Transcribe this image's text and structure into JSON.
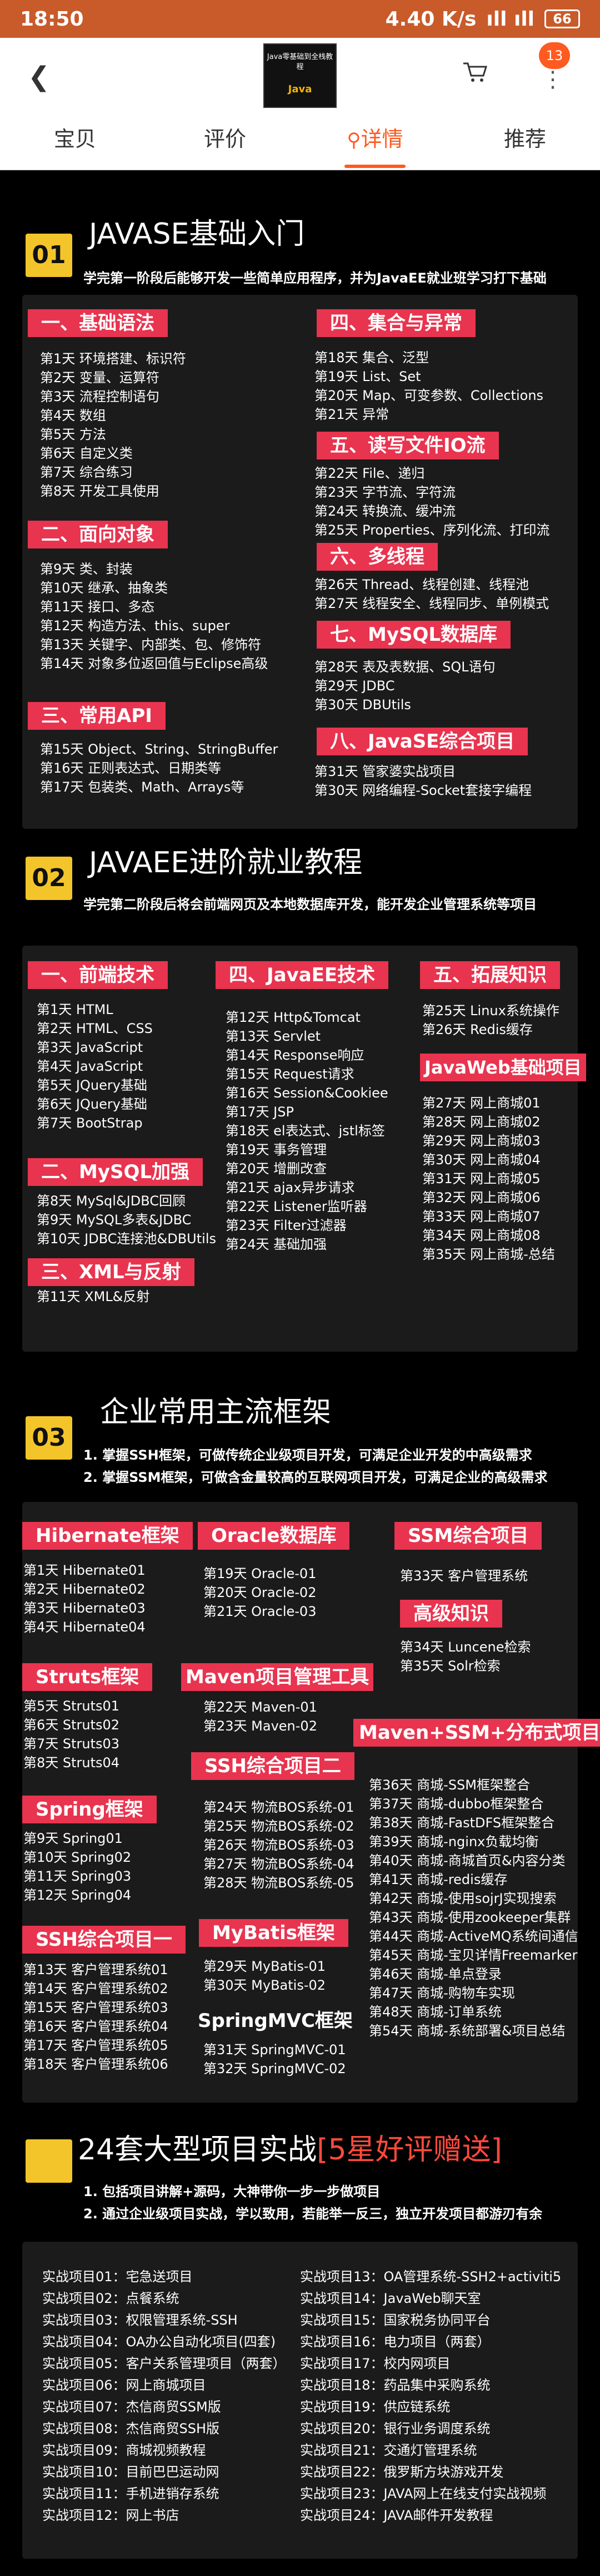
{
  "statusbar": {
    "time": "18:50",
    "speed": "4.40 K/s",
    "signal": "ıll ıll",
    "battery": "66"
  },
  "header": {
    "back_icon": "chevron-left-icon",
    "logo_text": "Java零基础到全栈教程",
    "logo_brand": "Java",
    "cart_icon": "cart-icon",
    "more_icon": "more-icon",
    "badge": "13"
  },
  "tabs": [
    {
      "label": "宝贝"
    },
    {
      "label": "评价"
    },
    {
      "label": "详情",
      "icon": "location-pin-icon"
    },
    {
      "label": "推荐"
    }
  ],
  "s1": {
    "num": "01",
    "title": "JAVASE基础入门",
    "sub": "学完第一阶段后能够开发一些简单应用程序，并为JavaEE就业班学习打下基础",
    "groups": [
      {
        "title": "一、基础语法",
        "items": [
          "第1天  环境搭建、标识符",
          "第2天  变量、运算符",
          "第3天  流程控制语句",
          "第4天  数组",
          "第5天  方法",
          "第6天  自定义类",
          "第7天  综合练习",
          "第8天  开发工具使用"
        ]
      },
      {
        "title": "二、面向对象",
        "items": [
          "第9天   类、封装",
          "第10天  继承、抽象类",
          "第11天  接口、多态",
          "第12天  构造方法、this、super",
          "第13天  关键字、内部类、包、修饰符",
          "第14天  对象多位返回值与Eclipse高级"
        ]
      },
      {
        "title": "三、常用API",
        "items": [
          "第15天  Object、String、StringBuffer",
          "第16天  正则表达式、日期类等",
          "第17天  包装类、Math、Arrays等"
        ]
      },
      {
        "title": "四、集合与异常",
        "items": [
          "第18天  集合、泛型",
          "第19天  List、Set",
          "第20天  Map、可变参数、Collections",
          "第21天  异常"
        ]
      },
      {
        "title": "五、读写文件IO流",
        "items": [
          "第22天  File、递归",
          "第23天  字节流、字符流",
          "第24天  转换流、缓冲流",
          "第25天  Properties、序列化流、打印流"
        ]
      },
      {
        "title": "六、多线程",
        "items": [
          "第26天  Thread、线程创建、线程池",
          "第27天  线程安全、线程同步、单例模式"
        ]
      },
      {
        "title": "七、MySQL数据库",
        "items": [
          "第28天  表及表数据、SQL语句",
          "第29天  JDBC",
          "第30天  DBUtils"
        ]
      },
      {
        "title": "八、JavaSE综合项目",
        "items": [
          "第31天  管家婆实战项目",
          "第30天  网络编程-Socket套接字编程"
        ]
      }
    ]
  },
  "s2": {
    "num": "02",
    "title": "JAVAEE进阶就业教程",
    "sub": "学完第二阶段后将会前端网页及本地数据库开发，能开发企业管理系统等项目",
    "groups": [
      {
        "title": "一、前端技术",
        "items": [
          "第1天  HTML",
          "第2天  HTML、CSS",
          "第3天  JavaScript",
          "第4天  JavaScript",
          "第5天  JQuery基础",
          "第6天  JQuery基础",
          "第7天  BootStrap"
        ]
      },
      {
        "title": "二、MySQL加强",
        "items": [
          "第8天   MySql&JDBC回顾",
          "第9天   MySQL多表&JDBC",
          "第10天  JDBC连接池&DBUtils"
        ]
      },
      {
        "title": "三、XML与反射",
        "items": [
          "第11天  XML&反射"
        ]
      },
      {
        "title": "四、JavaEE技术",
        "items": [
          "第12天  Http&Tomcat",
          "第13天  Servlet",
          "第14天  Response响应",
          "第15天  Request请求",
          "第16天  Session&Cookiee",
          "第17天  JSP",
          "第18天  el表达式、jstl标签",
          "第19天  事务管理",
          "第20天  增删改查",
          "第21天  ajax异步请求",
          "第22天  Listener监听器",
          "第23天  Filter过滤器",
          "第24天  基础加强"
        ]
      },
      {
        "title": "五、拓展知识",
        "items": [
          "第25天  Linux系统操作",
          "第26天  Redis缓存"
        ]
      },
      {
        "title": "JavaWeb基础项目",
        "items": [
          "第27天  网上商城01",
          "第28天  网上商城02",
          "第29天  网上商城03",
          "第30天  网上商城04",
          "第31天  网上商城05",
          "第32天  网上商城06",
          "第33天  网上商城07",
          "第34天  网上商城08",
          "第35天  网上商城-总结"
        ]
      }
    ]
  },
  "s3": {
    "num": "03",
    "title": "企业常用主流框架",
    "notes": [
      "1. 掌握SSH框架，可做传统企业级项目开发，可满足企业开发的中高级需求",
      "2. 掌握SSM框架，可做含金量较高的互联网项目开发，可满足企业的高级需求"
    ],
    "groups": [
      {
        "title": "Hibernate框架",
        "items": [
          "第1天  Hibernate01",
          "第2天  Hibernate02",
          "第3天  Hibernate03",
          "第4天  Hibernate04"
        ]
      },
      {
        "title": "Struts框架",
        "items": [
          "第5天  Struts01",
          "第6天  Struts02",
          "第7天  Struts03",
          "第8天  Struts04"
        ]
      },
      {
        "title": "Spring框架",
        "items": [
          "第9天   Spring01",
          "第10天  Spring02",
          "第11天  Spring03",
          "第12天  Spring04"
        ]
      },
      {
        "title": "SSH综合项目一",
        "items": [
          "第13天  客户管理系统01",
          "第14天  客户管理系统02",
          "第15天  客户管理系统03",
          "第16天  客户管理系统04",
          "第17天  客户管理系统05",
          "第18天  客户管理系统06"
        ]
      },
      {
        "title": "Oracle数据库",
        "items": [
          "第19天  Oracle-01",
          "第20天  Oracle-02",
          "第21天  Oracle-03"
        ]
      },
      {
        "title": "Maven项目管理工具",
        "items": [
          "第22天  Maven-01",
          "第23天  Maven-02"
        ]
      },
      {
        "title": "SSH综合项目二",
        "items": [
          "第24天  物流BOS系统-01",
          "第25天  物流BOS系统-02",
          "第26天  物流BOS系统-03",
          "第27天  物流BOS系统-04",
          "第28天  物流BOS系统-05"
        ]
      },
      {
        "title": "MyBatis框架",
        "items": [
          "第29天  MyBatis-01",
          "第30天  MyBatis-02"
        ]
      },
      {
        "title": "SpringMVC框架",
        "items": [
          "第31天  SpringMVC-01",
          "第32天  SpringMVC-02"
        ]
      },
      {
        "title": "SSM综合项目",
        "items": [
          "第33天  客户管理系统"
        ]
      },
      {
        "title": "高级知识",
        "items": [
          "第34天  Luncene检索",
          "第35天  Solr检索"
        ]
      },
      {
        "title": "Maven+SSM+分布式项目",
        "items": [
          "第36天  商城-SSM框架整合",
          "第37天  商城-dubbo框架整合",
          "第38天  商城-FastDFS框架整合",
          "第39天  商城-nginx负载均衡",
          "第40天  商城-商城首页&内容分类",
          "第41天  商城-redis缓存",
          "第42天  商城-使用sojrJ实现搜索",
          "第43天  商城-使用zookeeper集群",
          "第44天  商城-ActiveMQ系统间通信",
          "第45天  商城-宝贝详情Freemarker",
          "第46天  商城-单点登录",
          "第47天  商城-购物车实现",
          "第48天  商城-订单系统",
          "第54天  商城-系统部署&项目总结"
        ]
      }
    ]
  },
  "s4": {
    "title_a": "24套大型项目实战",
    "title_b": "[5星好评赠送]",
    "notes": [
      "1. 包括项目讲解+源码，大神带你一步一步做项目",
      "2. 通过企业级项目实战，学以致用，若能举一反三，独立开发项目都游刃有余"
    ],
    "left": [
      "实战项目01：宅急送项目",
      "实战项目02：点餐系统",
      "实战项目03：权限管理系统-SSH",
      "实战项目04：OA办公自动化项目(四套)",
      "实战项目05：客户关系管理项目（两套）",
      "实战项目06：网上商城项目",
      "实战项目07：杰信商贸SSM版",
      "实战项目08：杰信商贸SSH版",
      "实战项目09：商城视频教程",
      "实战项目10：目前巴巴运动网",
      "实战项目11：手机进销存系统",
      "实战项目12：网上书店"
    ],
    "right": [
      "实战项目13：OA管理系统-SSH2+activiti5",
      "实战项目14：JavaWeb聊天室",
      "实战项目15：国家税务协同平台",
      "实战项目16：电力项目（两套）",
      "实战项目17：校内网项目",
      "实战项目18：药品集中采购系统",
      "实战项目19：供应链系统",
      "实战项目20：银行业务调度系统",
      "实战项目21：交通灯管理系统",
      "实战项目22：俄罗斯方块游戏开发",
      "实战项目23：JAVA网上在线支付实战视频",
      "实战项目24：JAVA邮件开发教程"
    ]
  }
}
